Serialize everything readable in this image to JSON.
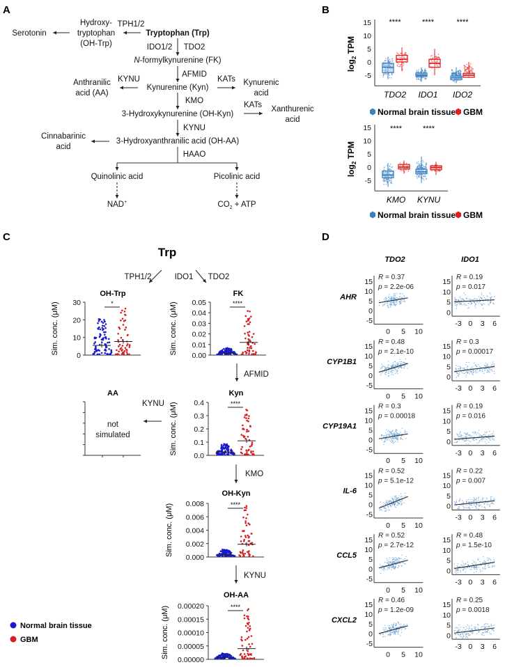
{
  "panels": {
    "a": "A",
    "b": "B",
    "c": "C",
    "d": "D"
  },
  "pathway": {
    "serotonin": "Serotonin",
    "ohtrp": [
      "Hydroxy-",
      "tryptophan",
      "(OH-Trp)"
    ],
    "tph": "TPH1/2",
    "trp": "Tryptophan (Trp)",
    "ido12": "IDO1/2",
    "tdo2": "TDO2",
    "fk_n": "N",
    "fk_rest": "-formylkynurenine (FK)",
    "afmid": "AFMID",
    "aa": [
      "Anthranilic",
      "acid (AA)"
    ],
    "kynu1": "KYNU",
    "kyn": "Kynurenine (Kyn)",
    "kats1": "KATs",
    "kynurenic": [
      "Kynurenic",
      "acid"
    ],
    "kmo": "KMO",
    "ohkyn": "3-Hydroxykynurenine (OH-Kyn)",
    "kats2": "KATs",
    "xanthurenic": [
      "Xanthurenic",
      "acid"
    ],
    "kynu2": "KYNU",
    "cinnabarinic": [
      "Cinnabarinic",
      "acid"
    ],
    "ohaa": "3-Hydroxyanthranilic acid (OH-AA)",
    "haao": "HAAO",
    "quinolinic": "Quinolinic acid",
    "picolinic": "Picolinic acid",
    "nad": "NAD",
    "nad_sup": "+",
    "co2": "CO",
    "co2_sub": "2",
    "atp": " + ATP"
  },
  "colors": {
    "normal": "#3a7fc0",
    "gbm": "#e02020",
    "normal_c": "#1a1acc",
    "gbm_c": "#d42020",
    "reg": "#333333",
    "scatter": "#5b9bd5"
  },
  "chart_data": [
    {
      "type": "box",
      "id": "b-top",
      "ylabel": "log2 TPM",
      "ylim": [
        -9,
        15
      ],
      "yticks": [
        "15",
        "10",
        "5",
        "0",
        "-5"
      ],
      "categories": [
        "TDO2",
        "IDO1",
        "IDO2"
      ],
      "significance": [
        "****",
        "****",
        "****"
      ],
      "series": [
        {
          "name": "Normal brain tissue",
          "boxes": [
            {
              "min": -6.5,
              "q1": -4,
              "median": -2,
              "q3": -0.5,
              "max": 2
            },
            {
              "min": -7.5,
              "q1": -5.5,
              "median": -5,
              "q3": -4.2,
              "max": -2
            },
            {
              "min": -8,
              "q1": -6.7,
              "median": -6,
              "q3": -5.3,
              "max": -2
            }
          ]
        },
        {
          "name": "GBM",
          "boxes": [
            {
              "min": -3.5,
              "q1": 0,
              "median": 1,
              "q3": 2.5,
              "max": 5.5
            },
            {
              "min": -5,
              "q1": -2,
              "median": -0.5,
              "q3": 1,
              "max": 5
            },
            {
              "min": -6,
              "q1": -5.8,
              "median": -5,
              "q3": -4.3,
              "max": 0
            }
          ]
        }
      ]
    },
    {
      "type": "box",
      "id": "b-bottom",
      "ylabel": "log2 TPM",
      "ylim": [
        -9,
        15
      ],
      "yticks": [
        "15",
        "10",
        "5",
        "0",
        "-5"
      ],
      "categories": [
        "KMO",
        "KYNU"
      ],
      "significance": [
        "****",
        "****"
      ],
      "series": [
        {
          "name": "Normal brain tissue",
          "boxes": [
            {
              "min": -7.5,
              "q1": -4,
              "median": -3,
              "q3": -1.5,
              "max": 1.5
            },
            {
              "min": -6,
              "q1": -2.5,
              "median": -1.8,
              "q3": -0.8,
              "max": 4
            }
          ]
        },
        {
          "name": "GBM",
          "boxes": [
            {
              "min": -2.5,
              "q1": -0.7,
              "median": 0,
              "q3": 1,
              "max": 2.5
            },
            {
              "min": -3,
              "q1": -1,
              "median": -0.2,
              "q3": 0.5,
              "max": 2
            }
          ]
        }
      ]
    },
    {
      "type": "scatter",
      "id": "c-ohtrp",
      "title": "OH-Trp",
      "ylabel": "Sim. conc. (μM)",
      "ylim": [
        0,
        30
      ],
      "yticks": [
        "30",
        "20",
        "10",
        "0"
      ],
      "significance": "*",
      "series": [
        {
          "name": "Normal brain tissue",
          "mean": 5.5,
          "max": 20
        },
        {
          "name": "GBM",
          "mean": 7.7,
          "max": 26
        }
      ]
    },
    {
      "type": "scatter",
      "id": "c-fk",
      "title": "FK",
      "ylabel": "Sim. conc. (μM)",
      "ylim": [
        0,
        0.05
      ],
      "yticks": [
        "0.05",
        "0.04",
        "0.03",
        "0.02",
        "0.01",
        "0.00"
      ],
      "significance": "****",
      "series": [
        {
          "name": "Normal brain tissue",
          "mean": 0.002,
          "max": 0.006
        },
        {
          "name": "GBM",
          "mean": 0.012,
          "max": 0.041
        }
      ]
    },
    {
      "type": "scatter",
      "id": "c-aa",
      "title": "AA",
      "note": [
        "not",
        "simulated"
      ]
    },
    {
      "type": "scatter",
      "id": "c-kyn",
      "title": "Kyn",
      "ylabel": "Sim. conc. (μM)",
      "ylim": [
        0,
        0.4
      ],
      "yticks": [
        "0.4",
        "0.3",
        "0.2",
        "0.1",
        "0.0"
      ],
      "significance": "****",
      "series": [
        {
          "name": "Normal brain tissue",
          "mean": 0.025,
          "max": 0.08
        },
        {
          "name": "GBM",
          "mean": 0.11,
          "max": 0.34
        }
      ]
    },
    {
      "type": "scatter",
      "id": "c-ohkyn",
      "title": "OH-Kyn",
      "ylabel": "Sim. conc. (μM)",
      "ylim": [
        0,
        0.008
      ],
      "yticks": [
        "0.008",
        "0.006",
        "0.004",
        "0.002",
        "0.000"
      ],
      "significance": "****",
      "series": [
        {
          "name": "Normal brain tissue",
          "mean": 0.0003,
          "max": 0.001
        },
        {
          "name": "GBM",
          "mean": 0.0019,
          "max": 0.0075
        }
      ]
    },
    {
      "type": "scatter",
      "id": "c-ohaa",
      "title": "OH-AA",
      "ylabel": "Sim. conc. (μM)",
      "ylim": [
        0,
        0.0002
      ],
      "yticks": [
        "0.00020",
        "0.00015",
        "0.00010",
        "0.00005",
        "0.00000"
      ],
      "significance": "****",
      "series": [
        {
          "name": "Normal brain tissue",
          "mean": 7e-06,
          "max": 2e-05
        },
        {
          "name": "GBM",
          "mean": 4e-05,
          "max": 0.000185
        }
      ]
    },
    {
      "type": "scatter",
      "id": "d-correlation",
      "columns": [
        "TDO2",
        "IDO1"
      ],
      "rows": [
        "AHR",
        "CYP1B1",
        "CYP19A1",
        "IL-6",
        "CCL5",
        "CXCL2"
      ],
      "xticks": [
        [
          "0",
          "5",
          "10"
        ],
        [
          "-3",
          "0",
          "3",
          "6"
        ]
      ],
      "yticks": [
        [
          "15",
          "10",
          "5",
          "0",
          "-5"
        ],
        [
          "15",
          "10",
          "5",
          "0"
        ]
      ],
      "stats": [
        [
          {
            "r": "0.37",
            "p": "2.2e-06",
            "fit": [
              4,
              6.5
            ]
          },
          {
            "r": "0.19",
            "p": "0.017",
            "fit": [
              5,
              6
            ]
          }
        ],
        [
          {
            "r": "0.48",
            "p": "2.1e-10",
            "fit": [
              1.5,
              6
            ]
          },
          {
            "r": "0.3",
            "p": "0.00017",
            "fit": [
              2.5,
              5
            ]
          }
        ],
        [
          {
            "r": "0.3",
            "p": "0.00018",
            "fit": [
              0.5,
              3
            ]
          },
          {
            "r": "0.19",
            "p": "0.016",
            "fit": [
              1,
              2.5
            ]
          }
        ],
        [
          {
            "r": "0.52",
            "p": "5.1e-12",
            "fit": [
              -2,
              4
            ]
          },
          {
            "r": "0.22",
            "p": "0.007",
            "fit": [
              0.5,
              2.5
            ]
          }
        ],
        [
          {
            "r": "0.52",
            "p": "2.7e-12",
            "fit": [
              0.5,
              4.5
            ]
          },
          {
            "r": "0.48",
            "p": "1.5e-10",
            "fit": [
              1,
              4
            ]
          }
        ],
        [
          {
            "r": "0.46",
            "p": "1.2e-09",
            "fit": [
              0,
              4
            ]
          },
          {
            "r": "0.25",
            "p": "0.0018",
            "fit": [
              1,
              3.5
            ]
          }
        ]
      ]
    }
  ],
  "panel_c": {
    "trp": "Trp",
    "tph": "TPH1/2",
    "ido1": "IDO1",
    "tdo2": "TDO2",
    "afmid": "AFMID",
    "kynu_left": "KYNU",
    "kmo": "KMO",
    "kynu_down": "KYNU"
  },
  "legend": {
    "normal": "Normal brain tissue",
    "gbm": "GBM"
  },
  "stat_labels": {
    "r": "R",
    "p": "p",
    "eq": " = "
  }
}
